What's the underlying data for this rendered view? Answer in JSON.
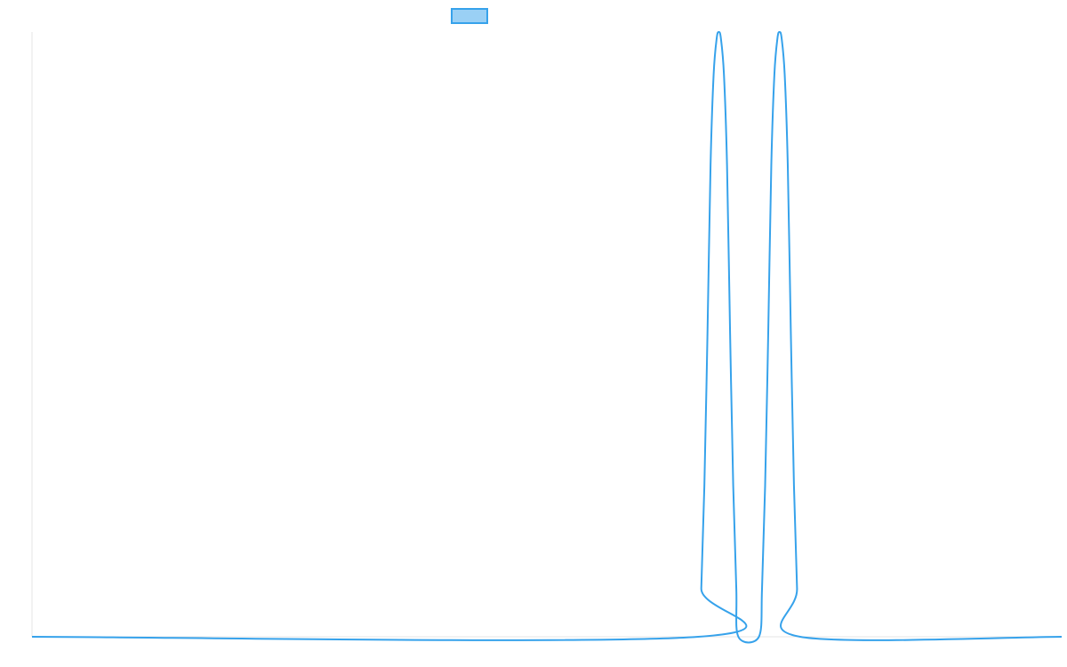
{
  "chart_data": {
    "type": "line",
    "title": "",
    "xlabel": "",
    "ylabel": "",
    "grid": false,
    "legend": {
      "placement": "top-center",
      "entries": [
        {
          "name": ""
        }
      ]
    },
    "x_range": [
      0,
      100
    ],
    "y_range": [
      0,
      1
    ],
    "series": [
      {
        "name": "",
        "color": "#36a2eb",
        "fill": "#9ad0f5",
        "x": [
          0,
          64.7,
          65,
          65.3,
          65.6,
          65.9,
          66.2,
          66.5,
          66.7,
          66.9,
          67.2,
          67.5,
          67.8,
          68.1,
          68.4,
          68.6,
          70.6,
          70.9,
          71.2,
          71.5,
          71.8,
          72.1,
          72.4,
          72.6,
          72.8,
          73.1,
          73.4,
          73.7,
          74.0,
          74.3,
          74.6,
          100
        ],
        "y": [
          0,
          0,
          0.08,
          0.25,
          0.5,
          0.78,
          0.93,
          0.99,
          1,
          0.99,
          0.93,
          0.78,
          0.5,
          0.25,
          0.08,
          0,
          0,
          0.08,
          0.25,
          0.5,
          0.78,
          0.93,
          0.99,
          1,
          0.99,
          0.93,
          0.78,
          0.5,
          0.25,
          0.08,
          0,
          0
        ]
      }
    ]
  }
}
